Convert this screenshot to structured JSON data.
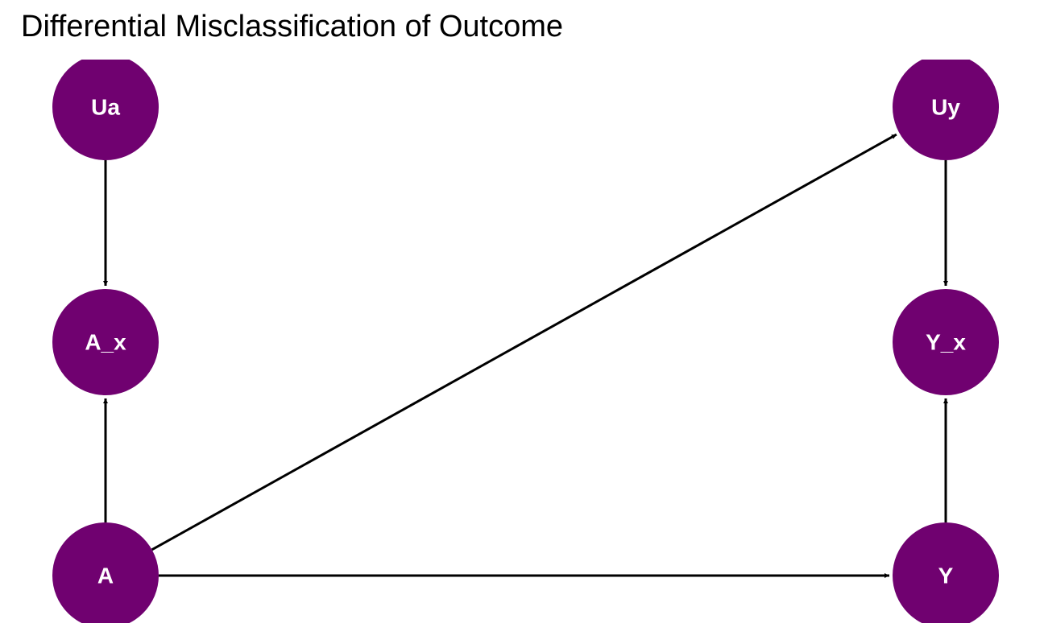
{
  "title": "Differential Misclassification of Outcome",
  "colors": {
    "node_fill": "#700170",
    "node_text": "#ffffff",
    "edge": "#000000",
    "background": "#ffffff"
  },
  "nodes": [
    {
      "id": "Ua",
      "label": "Ua"
    },
    {
      "id": "Uy",
      "label": "Uy"
    },
    {
      "id": "A_x",
      "label": "A_x"
    },
    {
      "id": "Y_x",
      "label": "Y_x"
    },
    {
      "id": "A",
      "label": "A"
    },
    {
      "id": "Y",
      "label": "Y"
    }
  ],
  "edges": [
    {
      "from": "Ua",
      "to": "A_x"
    },
    {
      "from": "A",
      "to": "A_x"
    },
    {
      "from": "A",
      "to": "Uy"
    },
    {
      "from": "A",
      "to": "Y"
    },
    {
      "from": "Uy",
      "to": "Y_x"
    },
    {
      "from": "Y",
      "to": "Y_x"
    }
  ]
}
